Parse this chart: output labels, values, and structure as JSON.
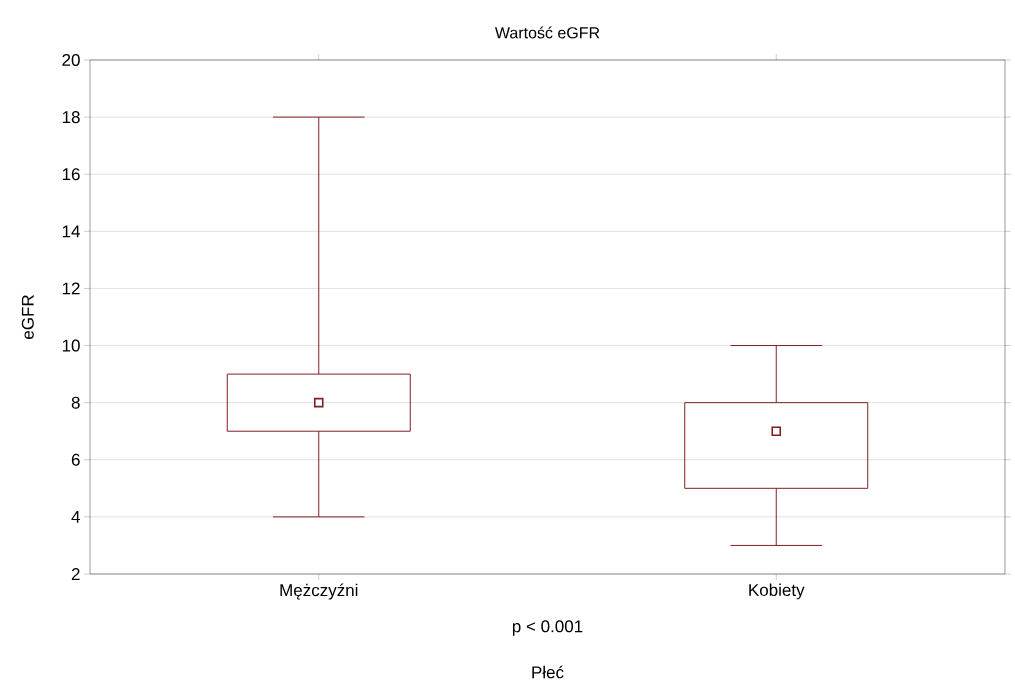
{
  "chart_data": {
    "type": "box",
    "title": "Wartość eGFR",
    "xlabel": "Płeć",
    "ylabel": "eGFR",
    "categories": [
      "Mężczyźni",
      "Kobiety"
    ],
    "boxes": [
      {
        "low": 4,
        "q1": 7,
        "median": 8,
        "q3": 9,
        "high": 18
      },
      {
        "low": 3,
        "q1": 5,
        "median": 7,
        "q3": 8,
        "high": 10
      }
    ],
    "color": "#7f1f24",
    "marker": "square",
    "ylim": [
      2,
      20
    ],
    "yticks": [
      2,
      4,
      6,
      8,
      10,
      12,
      14,
      16,
      18,
      20
    ],
    "grid": "y",
    "annotations": [
      "p < 0.001"
    ]
  }
}
